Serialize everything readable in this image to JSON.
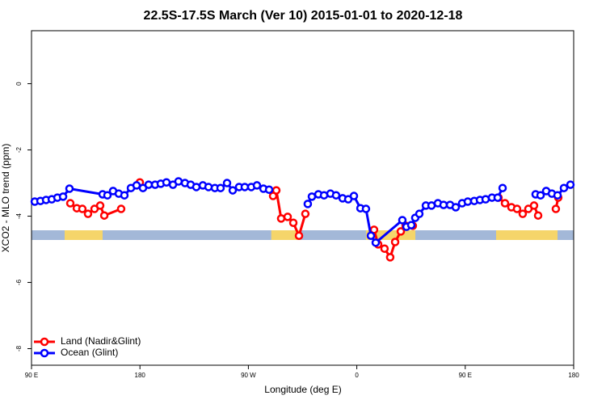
{
  "chart_data": {
    "type": "line",
    "title": "22.5S-17.5S March (Ver 10)   2015-01-01 to 2020-12-18",
    "x_label": "Longitude (deg E)",
    "y_label": "XCO2 - MLO trend (ppm)",
    "xlim": [
      90,
      540
    ],
    "xticks": [
      {
        "value": 90,
        "label": "90 E"
      },
      180,
      {
        "value": 270,
        "label": "90 W"
      },
      {
        "value": 360,
        "label": "0"
      },
      {
        "value": 450,
        "label": "90 E"
      },
      {
        "value": 540,
        "label": "180"
      }
    ],
    "ylim": [
      -8.5,
      1.6
    ],
    "yticks": [
      0,
      -2,
      -4,
      -6,
      -8
    ],
    "legend": "bottom-left",
    "land_bands": [
      [
        117.5,
        149
      ],
      [
        289,
        313
      ],
      [
        367.6,
        408.6
      ],
      [
        475.6,
        526.6
      ]
    ],
    "series": [
      {
        "name": "Land (Nadir&Glint)",
        "color": "#ff0000",
        "x": [
          122.2,
          127.6,
          132.2,
          136.9,
          142.3,
          147.0,
          150.4,
          164.4,
          null,
          179.9,
          null,
          290.5,
          293.2,
          297.2,
          302.6,
          307.3,
          312.0,
          317.3,
          null,
          374.3,
          377.7,
          383.0,
          387.7,
          391.8,
          396.5,
          400.5,
          406.5,
          null,
          477.6,
          483.0,
          488.3,
          493.0,
          497.7,
          502.4,
          507.1,
          510.5,
          null,
          525.2,
          527.2
        ],
        "values": [
          -3.61,
          -3.76,
          -3.78,
          -3.93,
          -3.78,
          -3.68,
          -3.98,
          -3.78,
          null,
          -2.98,
          null,
          -3.39,
          -3.22,
          -4.07,
          -4.02,
          -4.2,
          -4.59,
          -3.93,
          null,
          -4.41,
          -4.85,
          -4.98,
          -5.24,
          -4.78,
          -4.46,
          -4.29,
          -4.29,
          null,
          -3.44,
          -3.61,
          -3.73,
          -3.78,
          -3.93,
          -3.78,
          -3.68,
          -3.98,
          null,
          -3.78,
          -3.44
        ]
      },
      {
        "name": "Ocean (Glint)",
        "color": "#0000ff",
        "x": [
          92.7,
          97.4,
          102.1,
          106.8,
          111.5,
          116.2,
          121.5,
          149.0,
          153.0,
          157.7,
          162.4,
          167.1,
          172.5,
          177.2,
          182.5,
          187.2,
          192.6,
          197.3,
          202.0,
          207.4,
          212.0,
          217.4,
          222.1,
          226.8,
          232.2,
          236.9,
          242.2,
          246.9,
          252.3,
          257.0,
          262.3,
          267.0,
          272.4,
          277.1,
          282.5,
          287.2,
          null,
          319.3,
          322.7,
          328.1,
          332.8,
          338.1,
          342.8,
          348.2,
          352.9,
          357.6,
          363.0,
          367.6,
          371.7,
          375.7,
          397.8,
          401.2,
          405.2,
          408.5,
          411.9,
          417.3,
          422.0,
          427.3,
          432.0,
          437.4,
          442.1,
          447.4,
          452.1,
          457.5,
          462.2,
          466.9,
          472.2,
          476.9,
          481.0,
          null,
          508.4,
          512.5,
          517.2,
          521.9,
          526.6,
          531.9,
          537.3
        ],
        "values": [
          -3.56,
          -3.54,
          -3.51,
          -3.49,
          -3.44,
          -3.41,
          -3.17,
          -3.34,
          -3.37,
          -3.24,
          -3.32,
          -3.37,
          -3.15,
          -3.07,
          -3.15,
          -3.05,
          -3.05,
          -3.02,
          -2.98,
          -3.05,
          -2.95,
          -3.0,
          -3.05,
          -3.12,
          -3.07,
          -3.12,
          -3.15,
          -3.15,
          -3.0,
          -3.22,
          -3.12,
          -3.12,
          -3.12,
          -3.07,
          -3.17,
          -3.2,
          null,
          -3.63,
          -3.41,
          -3.34,
          -3.37,
          -3.32,
          -3.37,
          -3.46,
          -3.49,
          -3.39,
          -3.76,
          -3.78,
          -4.59,
          -4.8,
          -4.12,
          -4.32,
          -4.27,
          -4.05,
          -3.93,
          -3.68,
          -3.68,
          -3.61,
          -3.66,
          -3.66,
          -3.73,
          -3.61,
          -3.56,
          -3.54,
          -3.51,
          -3.49,
          -3.44,
          -3.44,
          -3.15,
          null,
          -3.34,
          -3.37,
          -3.24,
          -3.32,
          -3.37,
          -3.15,
          -3.05
        ]
      }
    ]
  }
}
